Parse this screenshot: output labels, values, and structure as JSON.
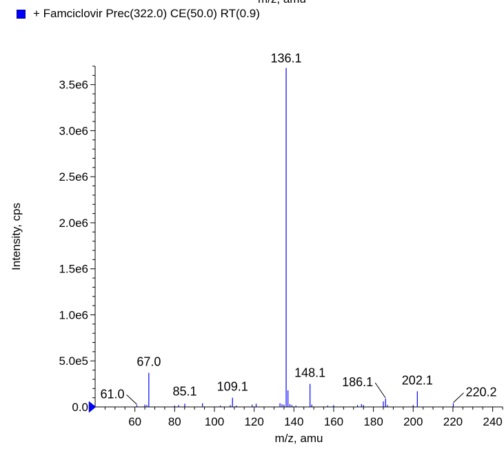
{
  "header": {
    "clipped_top_text": "m/z, amu"
  },
  "legend": {
    "swatch_color": "#0000ff",
    "label": "+ Famciclovir Prec(322.0) CE(50.0) RT(0.9)"
  },
  "chart_data": {
    "type": "bar",
    "xlabel": "m/z, amu",
    "ylabel": "Intensity, cps",
    "xlim": [
      40,
      245
    ],
    "ylim": [
      0,
      3700000
    ],
    "x_ticks": [
      60,
      80,
      100,
      120,
      140,
      160,
      180,
      200,
      220,
      240
    ],
    "x_tick_labels": [
      "60",
      "80",
      "100",
      "120",
      "140",
      "160",
      "180",
      "200",
      "220",
      "240"
    ],
    "y_ticks": [
      0,
      500000,
      1000000,
      1500000,
      2000000,
      2500000,
      3000000,
      3500000
    ],
    "y_tick_labels": [
      "0.0",
      "5.0e5",
      "1.0e6",
      "1.5e6",
      "2.0e6",
      "2.5e6",
      "3.0e6",
      "3.5e6"
    ],
    "color": "#0000ff",
    "peaks": [
      {
        "mz": 61.0,
        "intensity": 20000
      },
      {
        "mz": 65.0,
        "intensity": 25000
      },
      {
        "mz": 66.0,
        "intensity": 20000
      },
      {
        "mz": 67.0,
        "intensity": 370000
      },
      {
        "mz": 80.0,
        "intensity": 15000
      },
      {
        "mz": 82.0,
        "intensity": 20000
      },
      {
        "mz": 85.1,
        "intensity": 35000
      },
      {
        "mz": 94.0,
        "intensity": 40000
      },
      {
        "mz": 103.0,
        "intensity": 15000
      },
      {
        "mz": 108.0,
        "intensity": 20000
      },
      {
        "mz": 109.1,
        "intensity": 100000
      },
      {
        "mz": 111.0,
        "intensity": 15000
      },
      {
        "mz": 119.0,
        "intensity": 25000
      },
      {
        "mz": 121.0,
        "intensity": 35000
      },
      {
        "mz": 133.0,
        "intensity": 40000
      },
      {
        "mz": 134.0,
        "intensity": 30000
      },
      {
        "mz": 135.0,
        "intensity": 25000
      },
      {
        "mz": 136.1,
        "intensity": 3680000
      },
      {
        "mz": 137.0,
        "intensity": 180000
      },
      {
        "mz": 138.0,
        "intensity": 30000
      },
      {
        "mz": 139.0,
        "intensity": 20000
      },
      {
        "mz": 141.0,
        "intensity": 15000
      },
      {
        "mz": 148.1,
        "intensity": 250000
      },
      {
        "mz": 149.0,
        "intensity": 25000
      },
      {
        "mz": 157.0,
        "intensity": 15000
      },
      {
        "mz": 160.0,
        "intensity": 20000
      },
      {
        "mz": 172.0,
        "intensity": 20000
      },
      {
        "mz": 174.0,
        "intensity": 30000
      },
      {
        "mz": 175.0,
        "intensity": 20000
      },
      {
        "mz": 185.0,
        "intensity": 60000
      },
      {
        "mz": 186.1,
        "intensity": 90000
      },
      {
        "mz": 187.0,
        "intensity": 20000
      },
      {
        "mz": 200.0,
        "intensity": 20000
      },
      {
        "mz": 202.1,
        "intensity": 170000
      },
      {
        "mz": 220.2,
        "intensity": 40000
      }
    ],
    "annotations": [
      {
        "text": "136.1",
        "mz": 136.1
      },
      {
        "text": "148.1",
        "mz": 148.1
      },
      {
        "text": "67.0",
        "mz": 67.0
      },
      {
        "text": "85.1",
        "mz": 85.1
      },
      {
        "text": "109.1",
        "mz": 109.1
      },
      {
        "text": "61.0",
        "mz": 61.0
      },
      {
        "text": "186.1",
        "mz": 186.1
      },
      {
        "text": "202.1",
        "mz": 202.1
      },
      {
        "text": "220.2",
        "mz": 220.2
      }
    ]
  }
}
